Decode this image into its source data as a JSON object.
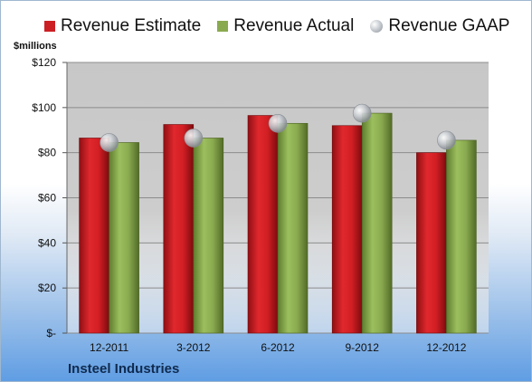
{
  "colors": {
    "estimate": "#cc1f24",
    "actual": "#8aaa4f",
    "gaap": "#b8bcc2",
    "plot_bg": "#c9c9c9",
    "grid": "#8c8c8c"
  },
  "legend": [
    {
      "name": "Revenue Estimate",
      "icon": "red-square"
    },
    {
      "name": "Revenue Actual",
      "icon": "green-square"
    },
    {
      "name": "Revenue GAAP",
      "icon": "gray-bubble"
    }
  ],
  "unit_label": "$millions",
  "company": "Insteel Industries",
  "chart_data": {
    "type": "bar",
    "title": "",
    "xlabel": "",
    "ylabel": "$millions",
    "categories": [
      "12-2011",
      "3-2012",
      "6-2012",
      "9-2012",
      "12-2012"
    ],
    "series": [
      {
        "name": "Revenue Estimate",
        "type": "bar",
        "values": [
          86.5,
          92.5,
          96.5,
          92,
          80
        ]
      },
      {
        "name": "Revenue Actual",
        "type": "bar",
        "values": [
          84.5,
          86.5,
          93,
          97.5,
          85.5
        ]
      },
      {
        "name": "Revenue GAAP",
        "type": "bubble",
        "values": [
          84.5,
          86.5,
          93,
          97.5,
          85.5
        ]
      }
    ],
    "ylim": [
      0,
      120
    ],
    "yticks": [
      0,
      20,
      40,
      60,
      80,
      100,
      120
    ],
    "ytick_labels": [
      "$-",
      "$20",
      "$40",
      "$60",
      "$80",
      "$100",
      "$120"
    ],
    "grid": true,
    "legend_position": "top"
  }
}
